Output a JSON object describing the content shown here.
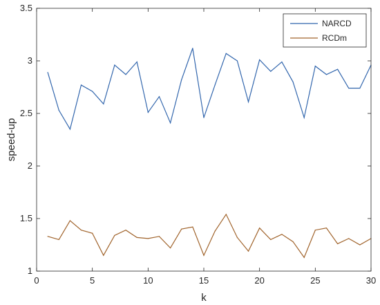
{
  "chart_data": {
    "type": "line",
    "title": "",
    "xlabel": "k",
    "ylabel": "speed-up",
    "xlim": [
      0,
      30
    ],
    "ylim": [
      1,
      3.5
    ],
    "xticks": [
      0,
      5,
      10,
      15,
      20,
      25,
      30
    ],
    "yticks": [
      1,
      1.5,
      2,
      2.5,
      3,
      3.5
    ],
    "xtick_labels": [
      "0",
      "5",
      "10",
      "15",
      "20",
      "25",
      "30"
    ],
    "ytick_labels": [
      "1",
      "1.5",
      "2",
      "2.5",
      "3",
      "3.5"
    ],
    "grid": false,
    "legend_position": "top-right",
    "x": [
      1,
      2,
      3,
      4,
      5,
      6,
      7,
      8,
      9,
      10,
      11,
      12,
      13,
      14,
      15,
      16,
      17,
      18,
      19,
      20,
      21,
      22,
      23,
      24,
      25,
      26,
      27,
      28,
      29,
      30
    ],
    "series": [
      {
        "name": "NARCD",
        "color": "#3266ad",
        "values": [
          2.89,
          2.53,
          2.35,
          2.77,
          2.71,
          2.59,
          2.96,
          2.87,
          2.99,
          2.51,
          2.66,
          2.41,
          2.82,
          3.12,
          2.46,
          2.77,
          3.07,
          3.0,
          2.61,
          3.01,
          2.9,
          2.99,
          2.8,
          2.46,
          2.95,
          2.87,
          2.92,
          2.74,
          2.74,
          2.96
        ]
      },
      {
        "name": "RCDm",
        "color": "#a0632b",
        "values": [
          1.33,
          1.3,
          1.48,
          1.39,
          1.36,
          1.15,
          1.34,
          1.39,
          1.32,
          1.31,
          1.33,
          1.22,
          1.4,
          1.42,
          1.15,
          1.38,
          1.54,
          1.32,
          1.19,
          1.41,
          1.3,
          1.35,
          1.28,
          1.13,
          1.39,
          1.41,
          1.26,
          1.31,
          1.25,
          1.31
        ]
      }
    ]
  }
}
